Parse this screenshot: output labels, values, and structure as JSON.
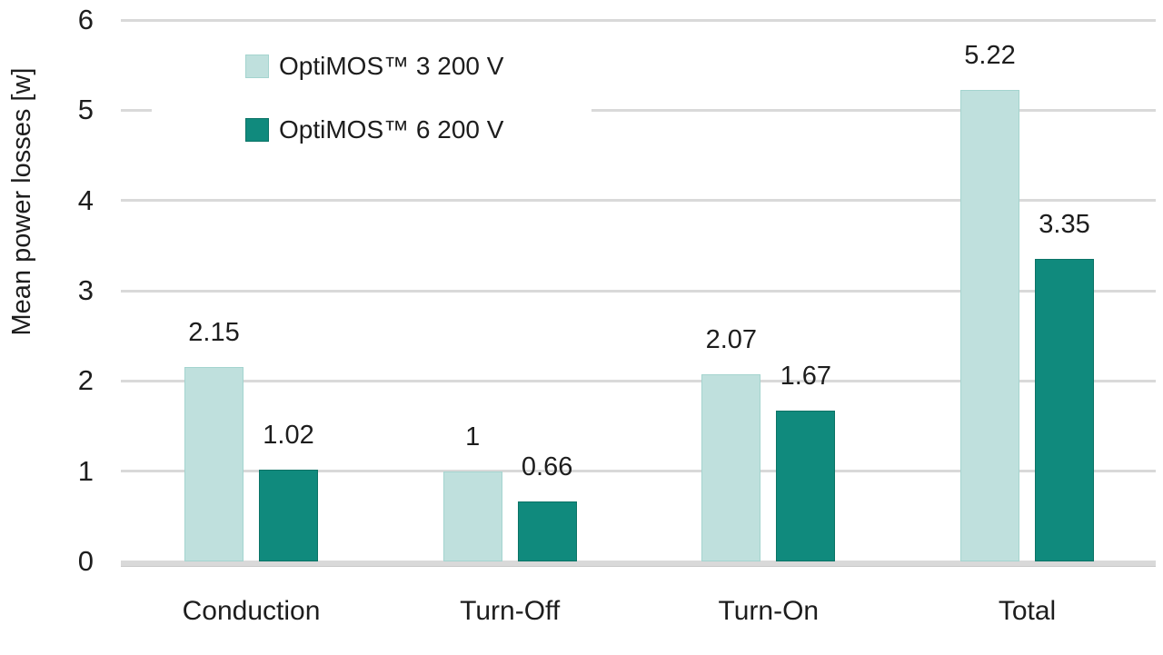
{
  "chart_data": {
    "type": "bar",
    "title": "",
    "xlabel": "",
    "ylabel": "Mean power losses [w]",
    "ylim": [
      0,
      6
    ],
    "yticks": [
      0,
      1,
      2,
      3,
      4,
      5,
      6
    ],
    "grid": true,
    "legend_position": "top-left",
    "categories": [
      "Conduction",
      "Turn-Off",
      "Turn-On",
      "Total"
    ],
    "series": [
      {
        "name": "OptiMOS™ 3 200 V",
        "color": "#bfe0dd",
        "border_color": "#a4d4cf",
        "values": [
          2.15,
          1,
          2.07,
          5.22
        ],
        "labels": [
          "2.15",
          "1",
          "2.07",
          "5.22"
        ]
      },
      {
        "name": "OptiMOS™ 6 200 V",
        "color": "#108a7d",
        "border_color": "#0b7366",
        "values": [
          1.02,
          0.66,
          1.67,
          3.35
        ],
        "labels": [
          "1.02",
          "0.66",
          "1.67",
          "3.35"
        ]
      }
    ]
  }
}
